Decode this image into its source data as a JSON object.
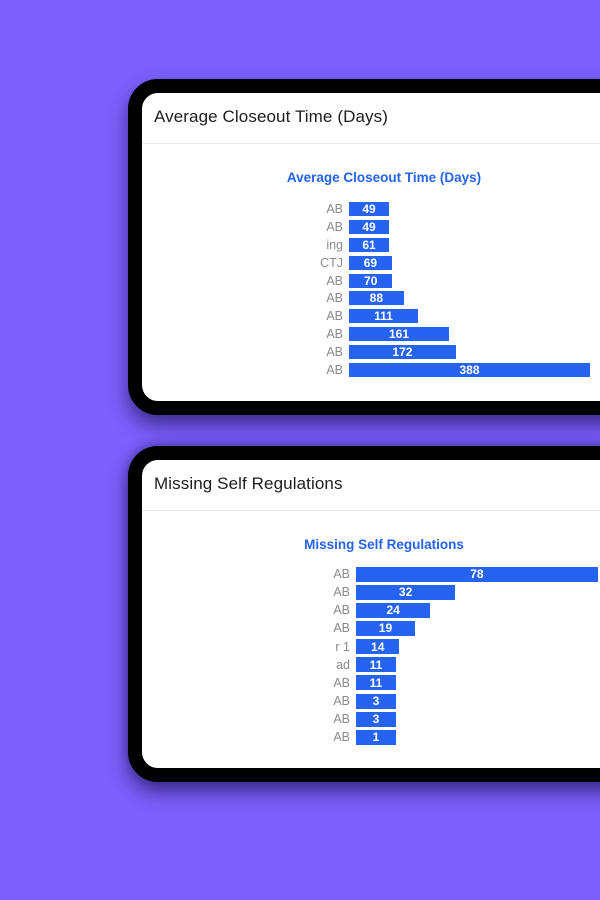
{
  "page": {
    "background_color": "#7c5ffc",
    "card_frame_color": "#000000",
    "card_background_color": "#ffffff",
    "divider_color": "#e7e7e7",
    "header_text_color": "#1d1d1f"
  },
  "cards": [
    {
      "header": "Average Closeout Time (Days)"
    },
    {
      "header": "Missing Self Regulations"
    }
  ],
  "chart_data": [
    {
      "type": "bar",
      "orientation": "horizontal",
      "title": "Average Closeout Time (Days)",
      "title_color": "#2563eb",
      "bar_color": "#2563f0",
      "tick_color": "#8a8a8a",
      "value_label_color": "#ffffff",
      "value_labels": "inside-center",
      "categories": [
        "AB",
        "AB",
        "ing",
        "CTJ",
        "AB",
        "AB",
        "AB",
        "AB",
        "AB",
        "AB"
      ],
      "values": [
        49,
        49,
        61,
        69,
        70,
        88,
        111,
        161,
        172,
        388
      ],
      "xlim": [
        0,
        388
      ],
      "grid": false,
      "legend": false
    },
    {
      "type": "bar",
      "orientation": "horizontal",
      "title": "Missing Self Regulations",
      "title_color": "#2563eb",
      "bar_color": "#2563f0",
      "tick_color": "#8a8a8a",
      "value_label_color": "#ffffff",
      "value_labels": "inside-center",
      "categories": [
        "AB",
        "AB",
        "AB",
        "AB",
        "r 1",
        "ad",
        "AB",
        "AB",
        "AB",
        "AB"
      ],
      "values": [
        78,
        32,
        24,
        19,
        14,
        11,
        11,
        3,
        3,
        1
      ],
      "xlim": [
        0,
        78
      ],
      "grid": false,
      "legend": false
    }
  ]
}
